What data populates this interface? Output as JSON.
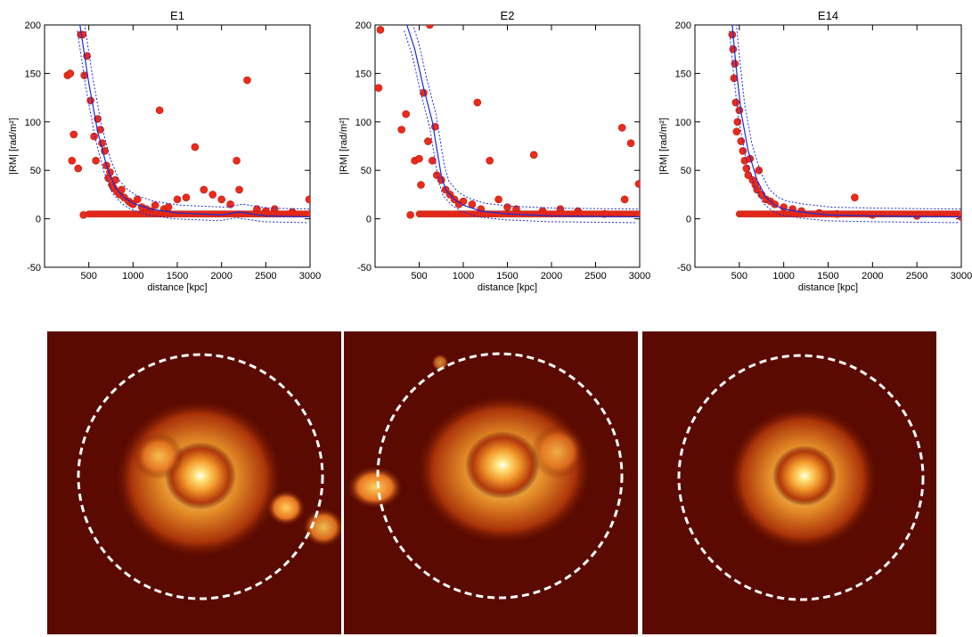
{
  "chart_data": [
    {
      "type": "scatter",
      "title": "E1",
      "xlabel": "distance [kpc]",
      "ylabel": "|RM| [rad/m²]",
      "xlim": [
        0,
        3000
      ],
      "ylim": [
        -50,
        200
      ],
      "xticks": [
        500,
        1000,
        1500,
        2000,
        2500,
        3000
      ],
      "yticks": [
        -50,
        0,
        50,
        100,
        150,
        200
      ],
      "colors": {
        "points": "#ee2a1b",
        "profile": "#1a2bd8"
      },
      "series": [
        {
          "kind": "scatter",
          "points": [
            [
              260,
              148
            ],
            [
              290,
              150
            ],
            [
              310,
              60
            ],
            [
              330,
              87
            ],
            [
              380,
              52
            ],
            [
              410,
              190
            ],
            [
              430,
              190
            ],
            [
              440,
              4
            ],
            [
              450,
              148
            ],
            [
              480,
              168
            ],
            [
              520,
              122
            ],
            [
              560,
              85
            ],
            [
              580,
              60
            ],
            [
              600,
              103
            ],
            [
              630,
              92
            ],
            [
              650,
              78
            ],
            [
              680,
              70
            ],
            [
              700,
              55
            ],
            [
              720,
              42
            ],
            [
              740,
              48
            ],
            [
              760,
              35
            ],
            [
              780,
              32
            ],
            [
              800,
              40
            ],
            [
              820,
              28
            ],
            [
              850,
              25
            ],
            [
              870,
              30
            ],
            [
              900,
              22
            ],
            [
              950,
              18
            ],
            [
              980,
              16
            ],
            [
              1000,
              15
            ],
            [
              1050,
              20
            ],
            [
              1100,
              12
            ],
            [
              1150,
              10
            ],
            [
              1200,
              8
            ],
            [
              1250,
              14
            ],
            [
              1300,
              112
            ],
            [
              1350,
              10
            ],
            [
              1400,
              12
            ],
            [
              1500,
              20
            ],
            [
              1600,
              22
            ],
            [
              1700,
              74
            ],
            [
              1800,
              30
            ],
            [
              1900,
              25
            ],
            [
              2000,
              20
            ],
            [
              2100,
              15
            ],
            [
              2170,
              60
            ],
            [
              2200,
              30
            ],
            [
              2290,
              143
            ],
            [
              2400,
              10
            ],
            [
              2500,
              8
            ],
            [
              2600,
              10
            ],
            [
              2800,
              7
            ],
            [
              2990,
              20
            ]
          ]
        },
        {
          "kind": "line",
          "points": [
            [
              400,
              200
            ],
            [
              500,
              140
            ],
            [
              600,
              90
            ],
            [
              700,
              55
            ],
            [
              800,
              32
            ],
            [
              900,
              22
            ],
            [
              1000,
              16
            ],
            [
              1200,
              10
            ],
            [
              1500,
              6
            ],
            [
              2000,
              4
            ],
            [
              2200,
              7
            ],
            [
              2500,
              3
            ],
            [
              3000,
              2
            ]
          ]
        }
      ]
    },
    {
      "type": "scatter",
      "title": "E2",
      "xlabel": "distance [kpc]",
      "ylabel": "|RM| [rad/m²]",
      "xlim": [
        0,
        3000
      ],
      "ylim": [
        -50,
        200
      ],
      "xticks": [
        500,
        1000,
        1500,
        2000,
        2500,
        3000
      ],
      "yticks": [
        -50,
        0,
        50,
        100,
        150,
        200
      ],
      "colors": {
        "points": "#ee2a1b",
        "profile": "#1a2bd8"
      },
      "series": [
        {
          "kind": "scatter",
          "points": [
            [
              40,
              135
            ],
            [
              60,
              195
            ],
            [
              300,
              92
            ],
            [
              350,
              108
            ],
            [
              400,
              4
            ],
            [
              450,
              60
            ],
            [
              500,
              62
            ],
            [
              520,
              35
            ],
            [
              550,
              130
            ],
            [
              600,
              80
            ],
            [
              620,
              200
            ],
            [
              650,
              60
            ],
            [
              680,
              95
            ],
            [
              700,
              45
            ],
            [
              750,
              40
            ],
            [
              800,
              30
            ],
            [
              850,
              25
            ],
            [
              900,
              20
            ],
            [
              950,
              15
            ],
            [
              1000,
              18
            ],
            [
              1100,
              15
            ],
            [
              1160,
              120
            ],
            [
              1200,
              10
            ],
            [
              1300,
              60
            ],
            [
              1400,
              20
            ],
            [
              1500,
              12
            ],
            [
              1600,
              10
            ],
            [
              1800,
              66
            ],
            [
              1900,
              8
            ],
            [
              2100,
              10
            ],
            [
              2300,
              8
            ],
            [
              2600,
              5
            ],
            [
              2800,
              94
            ],
            [
              2830,
              20
            ],
            [
              2900,
              78
            ],
            [
              2990,
              36
            ]
          ]
        },
        {
          "kind": "line",
          "points": [
            [
              360,
              200
            ],
            [
              450,
              175
            ],
            [
              550,
              135
            ],
            [
              650,
              100
            ],
            [
              700,
              72
            ],
            [
              750,
              45
            ],
            [
              800,
              30
            ],
            [
              900,
              20
            ],
            [
              1000,
              14
            ],
            [
              1200,
              8
            ],
            [
              1500,
              5
            ],
            [
              2000,
              3
            ],
            [
              3000,
              2
            ]
          ]
        }
      ]
    },
    {
      "type": "scatter",
      "title": "E14",
      "xlabel": "distance [kpc]",
      "ylabel": "|RM| [rad/m²]",
      "xlim": [
        0,
        3000
      ],
      "ylim": [
        -50,
        200
      ],
      "xticks": [
        500,
        1000,
        1500,
        2000,
        2500,
        3000
      ],
      "yticks": [
        -50,
        0,
        50,
        100,
        150,
        200
      ],
      "colors": {
        "points": "#ee2a1b",
        "profile": "#1a2bd8"
      },
      "series": [
        {
          "kind": "scatter",
          "points": [
            [
              420,
              190
            ],
            [
              430,
              175
            ],
            [
              440,
              145
            ],
            [
              450,
              160
            ],
            [
              460,
              120
            ],
            [
              470,
              90
            ],
            [
              480,
              100
            ],
            [
              500,
              112
            ],
            [
              520,
              80
            ],
            [
              540,
              70
            ],
            [
              560,
              60
            ],
            [
              580,
              52
            ],
            [
              600,
              45
            ],
            [
              620,
              62
            ],
            [
              650,
              40
            ],
            [
              680,
              35
            ],
            [
              700,
              30
            ],
            [
              720,
              50
            ],
            [
              750,
              25
            ],
            [
              800,
              20
            ],
            [
              850,
              18
            ],
            [
              900,
              15
            ],
            [
              1000,
              12
            ],
            [
              1100,
              10
            ],
            [
              1200,
              8
            ],
            [
              1400,
              6
            ],
            [
              1600,
              5
            ],
            [
              1800,
              22
            ],
            [
              2000,
              4
            ],
            [
              2500,
              3
            ],
            [
              3000,
              2
            ]
          ]
        },
        {
          "kind": "line",
          "points": [
            [
              420,
              200
            ],
            [
              460,
              160
            ],
            [
              520,
              110
            ],
            [
              600,
              70
            ],
            [
              700,
              40
            ],
            [
              800,
              22
            ],
            [
              900,
              14
            ],
            [
              1000,
              10
            ],
            [
              1200,
              7
            ],
            [
              1500,
              4
            ],
            [
              2000,
              3
            ],
            [
              3000,
              2
            ]
          ]
        }
      ]
    }
  ],
  "images": {
    "background_color": "#5a0a00",
    "circle_color": "#ffffff",
    "labels": [
      "E1",
      "E2",
      "E14"
    ]
  }
}
